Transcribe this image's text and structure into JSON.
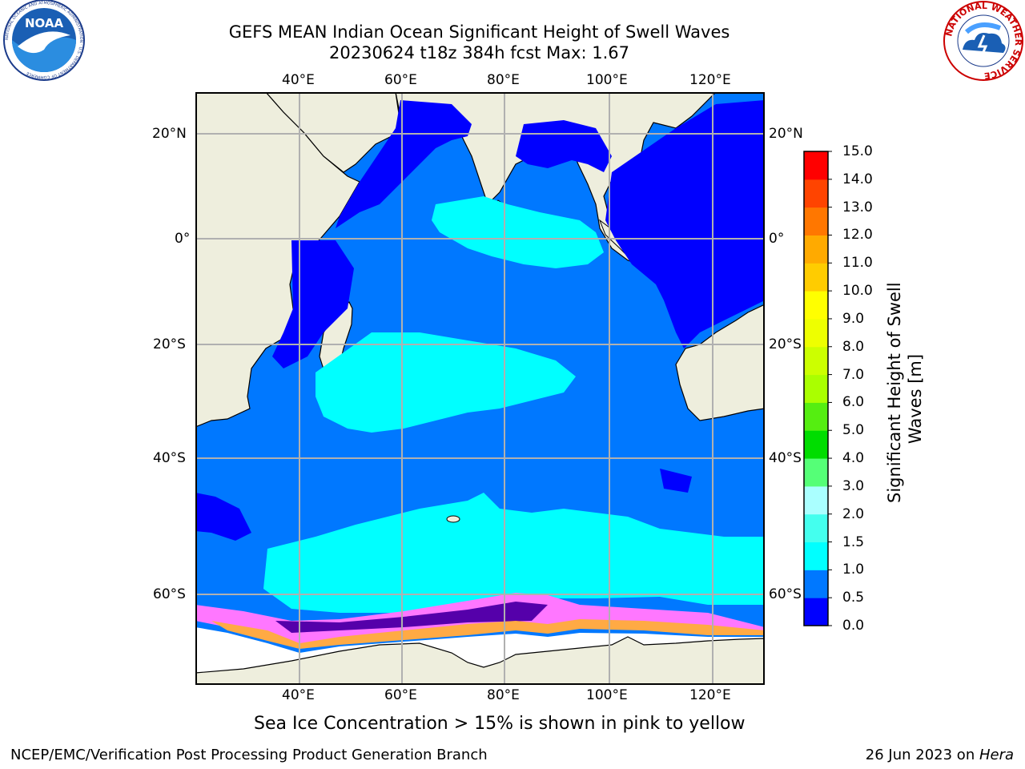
{
  "header": {
    "title_line1": "GEFS MEAN Indian Ocean Significant Height of Swell Waves",
    "title_line2": "20230624 t18z 384h fcst   Max: 1.67"
  },
  "logos": {
    "noaa_text": "NOAA",
    "noaa_ring_text": "NATIONAL OCEANIC AND ATMOSPHERIC ADMINISTRATION · U.S. DEPARTMENT OF COMMERCE",
    "nws_ring_text": "NATIONAL WEATHER SERVICE"
  },
  "map": {
    "lon_labels": [
      "40°E",
      "60°E",
      "80°E",
      "100°E",
      "120°E"
    ],
    "lat_labels": [
      "20°N",
      "0°",
      "20°S",
      "40°S",
      "60°S"
    ],
    "colors": {
      "land": "#eeeedd",
      "ocean_deep_blue": "#0000ff",
      "ocean_mid_blue": "#0078ff",
      "ocean_cyan": "#00ffff",
      "ice_pink": "#ff77ff",
      "ice_orange": "#ffaa44",
      "ice_yellow": "#ffff66",
      "ice_magenta": "#ff00ff",
      "ice_purple": "#5500aa",
      "gridline": "#b0b0b0"
    }
  },
  "colorbar": {
    "label_line1": "Significant Height of Swell",
    "label_line2": "Waves [m]",
    "tick_labels": [
      "0.0",
      "0.5",
      "1.0",
      "1.5",
      "2.0",
      "3.0",
      "4.0",
      "5.0",
      "6.0",
      "7.0",
      "8.0",
      "9.0",
      "10.0",
      "11.0",
      "12.0",
      "13.0",
      "14.0",
      "15.0"
    ],
    "bins": [
      {
        "from": 0.0,
        "to": 0.5,
        "color": "#0000ff"
      },
      {
        "from": 0.5,
        "to": 1.0,
        "color": "#0078ff"
      },
      {
        "from": 1.0,
        "to": 1.5,
        "color": "#00ffff"
      },
      {
        "from": 1.5,
        "to": 2.0,
        "color": "#44ffee"
      },
      {
        "from": 2.0,
        "to": 3.0,
        "color": "#aaffff"
      },
      {
        "from": 3.0,
        "to": 4.0,
        "color": "#55ff77"
      },
      {
        "from": 4.0,
        "to": 5.0,
        "color": "#00dd00"
      },
      {
        "from": 5.0,
        "to": 6.0,
        "color": "#55ee11"
      },
      {
        "from": 6.0,
        "to": 7.0,
        "color": "#aaff00"
      },
      {
        "from": 7.0,
        "to": 8.0,
        "color": "#ccff00"
      },
      {
        "from": 8.0,
        "to": 9.0,
        "color": "#eeff00"
      },
      {
        "from": 9.0,
        "to": 10.0,
        "color": "#ffff00"
      },
      {
        "from": 10.0,
        "to": 11.0,
        "color": "#ffcc00"
      },
      {
        "from": 11.0,
        "to": 12.0,
        "color": "#ffaa00"
      },
      {
        "from": 12.0,
        "to": 13.0,
        "color": "#ff7700"
      },
      {
        "from": 13.0,
        "to": 14.0,
        "color": "#ff4400"
      },
      {
        "from": 14.0,
        "to": 15.0,
        "color": "#ff0000"
      }
    ]
  },
  "notes": {
    "sea_ice": "Sea Ice Concentration > 15% is shown in pink to yellow"
  },
  "footer": {
    "left": "NCEP/EMC/Verification Post Processing Product Generation Branch",
    "right_prefix": "26 Jun 2023 on ",
    "right_machine": "Hera"
  }
}
